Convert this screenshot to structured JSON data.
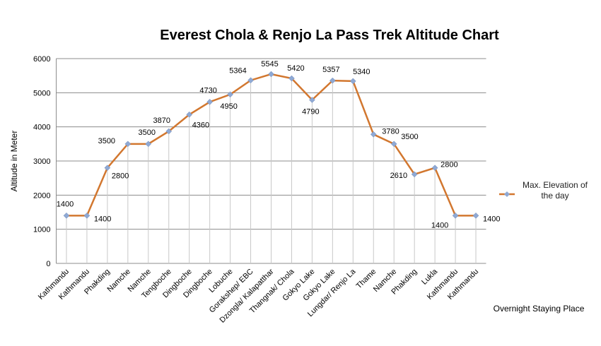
{
  "chart_data": {
    "type": "line",
    "title": "Everest Chola & Renjo La Pass Trek Altitude Chart",
    "y_axis_label": "Altitude in Meter",
    "x_axis_label": "Overnight Staying Place",
    "categories": [
      "Kathmandu",
      "Kathmandu",
      "Phakding",
      "Namche",
      "Namche",
      "Tengboche",
      "Dingboche",
      "Dingboche",
      "Lobuche",
      "Gorakshep/ EBC",
      "Dzongla/ Kalapatthar",
      "Thangnak/ Chola",
      "Gokyo Lake",
      "Gokyo Lake",
      "Lungdar/ Renjo La",
      "Thame",
      "Namche",
      "Phakding",
      "Lukla",
      "Kathmandu",
      "Kathmandu"
    ],
    "series": [
      {
        "name": "Max. Elevation of the day",
        "color": "#d2772f",
        "marker_color": "#8fa9d4",
        "values": [
          1400,
          1400,
          2800,
          3500,
          3500,
          3870,
          4360,
          4730,
          4950,
          5364,
          5545,
          5420,
          4790,
          5357,
          5340,
          3780,
          3500,
          2610,
          2800,
          1400,
          1400
        ]
      }
    ],
    "ylim": [
      0,
      6000
    ],
    "yticks": [
      0,
      1000,
      2000,
      3000,
      4000,
      5000,
      6000
    ],
    "grid": true,
    "legend": "right"
  }
}
